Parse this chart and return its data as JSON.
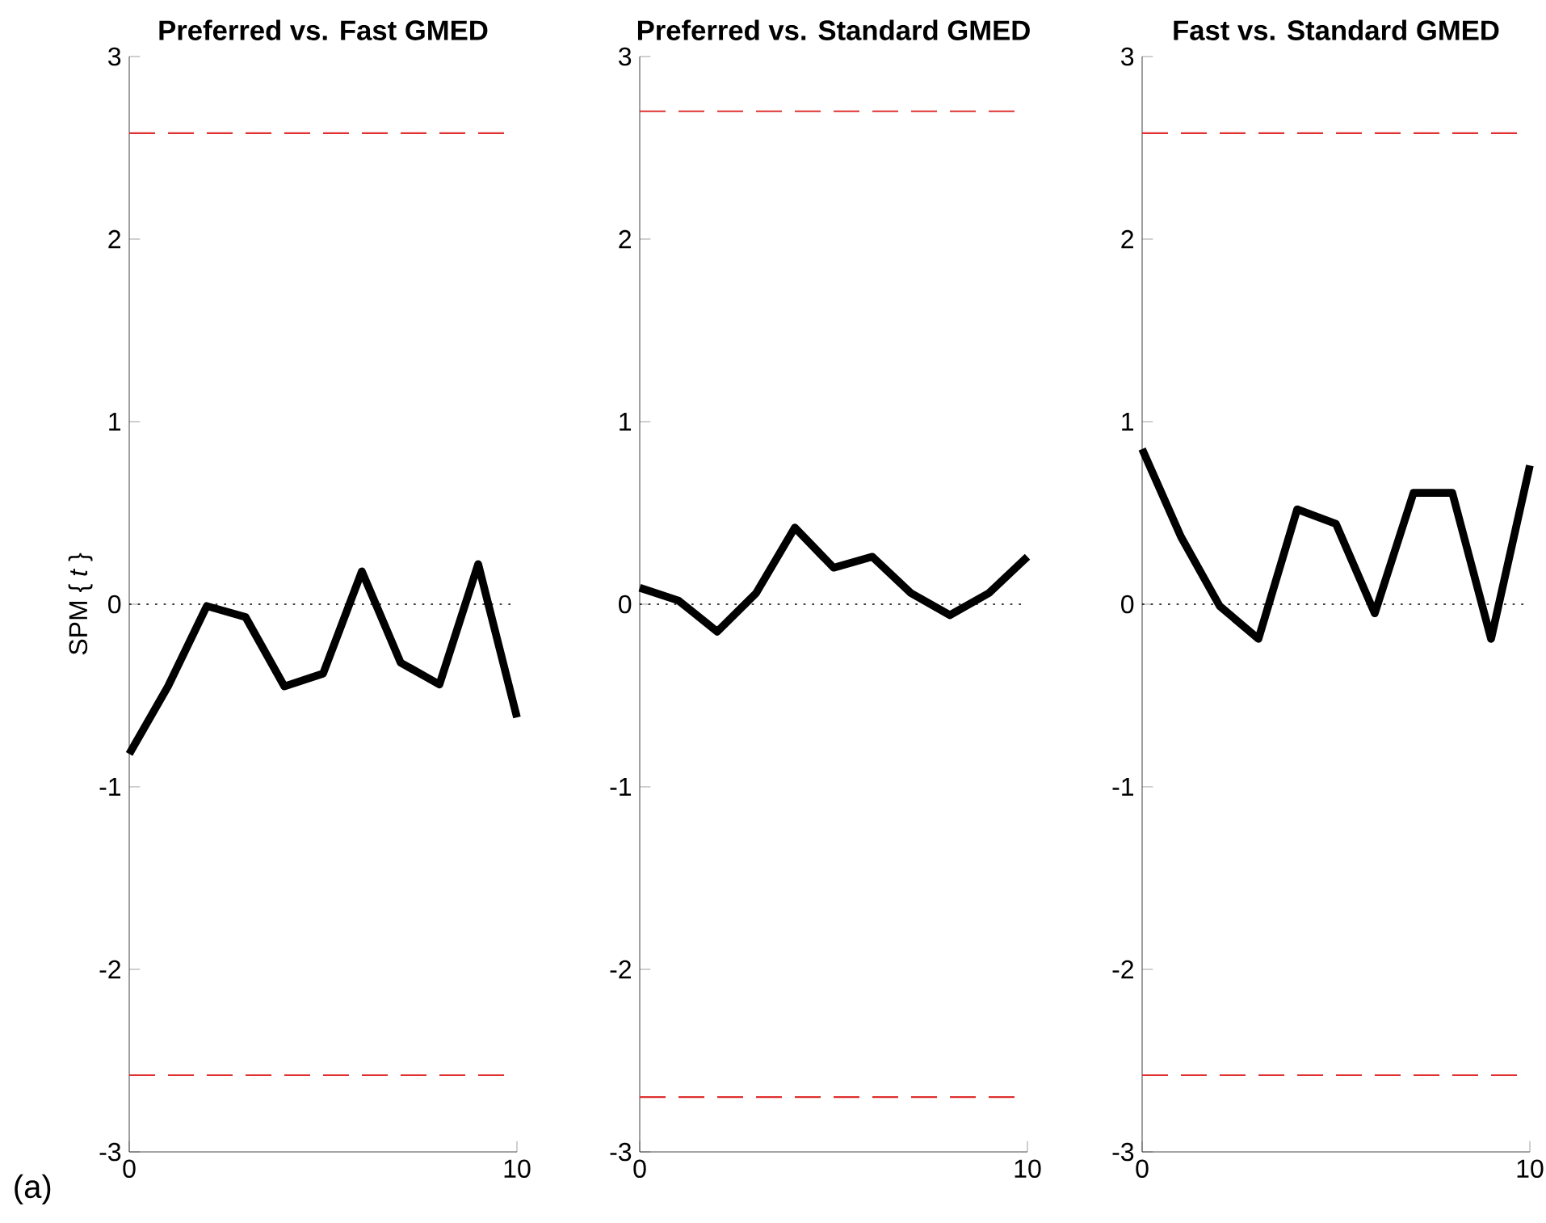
{
  "chart_data": [
    {
      "type": "line",
      "title": "Preferred vs. Fast GMED",
      "ylabel": "SPM { *t* }",
      "annotations": [
        "(a)"
      ],
      "x": [
        0,
        1,
        2,
        3,
        4,
        5,
        6,
        7,
        8,
        9,
        10
      ],
      "xlim": [
        0,
        10
      ],
      "ylim": [
        -3,
        3
      ],
      "xticks": [
        0,
        10
      ],
      "yticks": [
        -3,
        -2,
        -1,
        0,
        1,
        2,
        3
      ],
      "grid": false,
      "marker": "none",
      "line_style": "solid",
      "series": [
        {
          "color": "#000000",
          "values": [
            -0.82,
            -0.45,
            -0.01,
            -0.07,
            -0.45,
            -0.38,
            0.18,
            -0.32,
            -0.44,
            0.22,
            -0.62
          ]
        }
      ],
      "ref_lines": [
        {
          "axis": "y",
          "value": 2.58,
          "color": "#e03030",
          "line_style": "dashed"
        },
        {
          "axis": "y",
          "value": -2.58,
          "color": "#e03030",
          "line_style": "dashed"
        },
        {
          "axis": "y",
          "value": 0,
          "color": "#000000",
          "line_style": "dotted"
        }
      ]
    },
    {
      "type": "line",
      "title": "Preferred vs. Standard GMED",
      "x": [
        0,
        1,
        2,
        3,
        4,
        5,
        6,
        7,
        8,
        9,
        10
      ],
      "xlim": [
        0,
        10
      ],
      "ylim": [
        -3,
        3
      ],
      "xticks": [
        0,
        10
      ],
      "yticks": [
        -3,
        -2,
        -1,
        0,
        1,
        2,
        3
      ],
      "grid": false,
      "marker": "none",
      "line_style": "solid",
      "series": [
        {
          "color": "#000000",
          "values": [
            0.09,
            0.02,
            -0.15,
            0.06,
            0.42,
            0.2,
            0.26,
            0.06,
            -0.06,
            0.06,
            0.26
          ]
        }
      ],
      "ref_lines": [
        {
          "axis": "y",
          "value": 2.7,
          "color": "#e03030",
          "line_style": "dashed"
        },
        {
          "axis": "y",
          "value": -2.7,
          "color": "#e03030",
          "line_style": "dashed"
        },
        {
          "axis": "y",
          "value": 0,
          "color": "#000000",
          "line_style": "dotted"
        }
      ]
    },
    {
      "type": "line",
      "title": "Fast vs. Standard GMED",
      "x": [
        0,
        1,
        2,
        3,
        4,
        5,
        6,
        7,
        8,
        9,
        10
      ],
      "xlim": [
        0,
        10
      ],
      "ylim": [
        -3,
        3
      ],
      "xticks": [
        0,
        10
      ],
      "yticks": [
        -3,
        -2,
        -1,
        0,
        1,
        2,
        3
      ],
      "grid": false,
      "marker": "none",
      "line_style": "solid",
      "series": [
        {
          "color": "#000000",
          "values": [
            0.85,
            0.37,
            -0.01,
            -0.19,
            0.52,
            0.44,
            -0.05,
            0.61,
            0.61,
            -0.19,
            0.76
          ]
        }
      ],
      "ref_lines": [
        {
          "axis": "y",
          "value": 2.58,
          "color": "#e03030",
          "line_style": "dashed"
        },
        {
          "axis": "y",
          "value": -2.58,
          "color": "#e03030",
          "line_style": "dashed"
        },
        {
          "axis": "y",
          "value": 0,
          "color": "#000000",
          "line_style": "dotted"
        }
      ]
    }
  ]
}
